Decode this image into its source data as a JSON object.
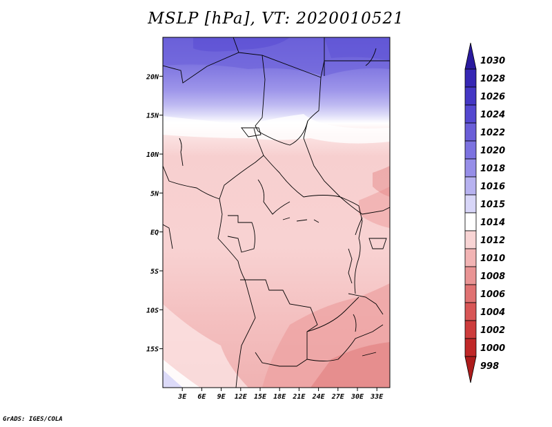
{
  "title": "MSLP [hPa], VT: 2020010521",
  "credit": "GrADS: IGES/COLA",
  "map": {
    "variable": "MSLP",
    "units": "hPa",
    "valid_time": "2020010521",
    "lon_range": [
      0,
      35
    ],
    "lat_range": [
      -20,
      25
    ],
    "lon_ticks": [
      {
        "lon": 3,
        "label": "3E"
      },
      {
        "lon": 6,
        "label": "6E"
      },
      {
        "lon": 9,
        "label": "9E"
      },
      {
        "lon": 12,
        "label": "12E"
      },
      {
        "lon": 15,
        "label": "15E"
      },
      {
        "lon": 18,
        "label": "18E"
      },
      {
        "lon": 21,
        "label": "21E"
      },
      {
        "lon": 24,
        "label": "24E"
      },
      {
        "lon": 27,
        "label": "27E"
      },
      {
        "lon": 30,
        "label": "30E"
      },
      {
        "lon": 33,
        "label": "33E"
      }
    ],
    "lat_ticks": [
      {
        "lat": 20,
        "label": "20N"
      },
      {
        "lat": 15,
        "label": "15N"
      },
      {
        "lat": 10,
        "label": "10N"
      },
      {
        "lat": 5,
        "label": "5N"
      },
      {
        "lat": 0,
        "label": "EQ"
      },
      {
        "lat": -5,
        "label": "5S"
      },
      {
        "lat": -10,
        "label": "10S"
      },
      {
        "lat": -15,
        "label": "15S"
      }
    ]
  },
  "colorbar": {
    "levels": [
      "1030",
      "1028",
      "1026",
      "1024",
      "1022",
      "1020",
      "1018",
      "1016",
      "1015",
      "1014",
      "1012",
      "1010",
      "1008",
      "1006",
      "1004",
      "1002",
      "1000",
      "998"
    ],
    "colors": [
      "#2a1a9e",
      "#3627b4",
      "#4437c4",
      "#5448d0",
      "#6a5ed8",
      "#7c72e0",
      "#968ee8",
      "#b7b2f0",
      "#d8d6f8",
      "#ffffff",
      "#f8d4d4",
      "#f2b4b4",
      "#e99494",
      "#e07272",
      "#d85656",
      "#cd3c3c",
      "#c02828",
      "#ad1c1c"
    ]
  }
}
